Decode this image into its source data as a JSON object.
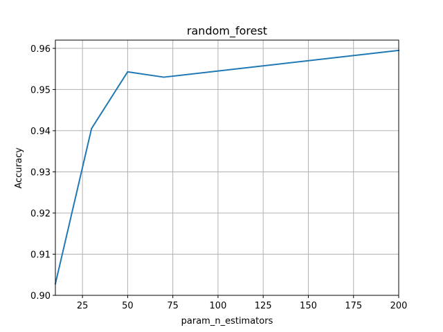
{
  "chart_data": {
    "type": "line",
    "title": "random_forest",
    "xlabel": "param_n_estimators",
    "ylabel": "Accuracy",
    "xlim": [
      10,
      200
    ],
    "ylim": [
      0.9,
      0.962
    ],
    "grid": true,
    "xticks": [
      25,
      50,
      75,
      100,
      125,
      150,
      175,
      200
    ],
    "xtick_labels": [
      "25",
      "50",
      "75",
      "100",
      "125",
      "150",
      "175",
      "200"
    ],
    "yticks": [
      0.9,
      0.91,
      0.92,
      0.93,
      0.94,
      0.95,
      0.96
    ],
    "ytick_labels": [
      "0.90",
      "0.91",
      "0.92",
      "0.93",
      "0.94",
      "0.95",
      "0.96"
    ],
    "series": [
      {
        "color": "#1f77b4",
        "x": [
          10,
          30,
          50,
          70,
          200
        ],
        "y": [
          0.9028,
          0.9405,
          0.9543,
          0.953,
          0.9595
        ]
      }
    ]
  }
}
